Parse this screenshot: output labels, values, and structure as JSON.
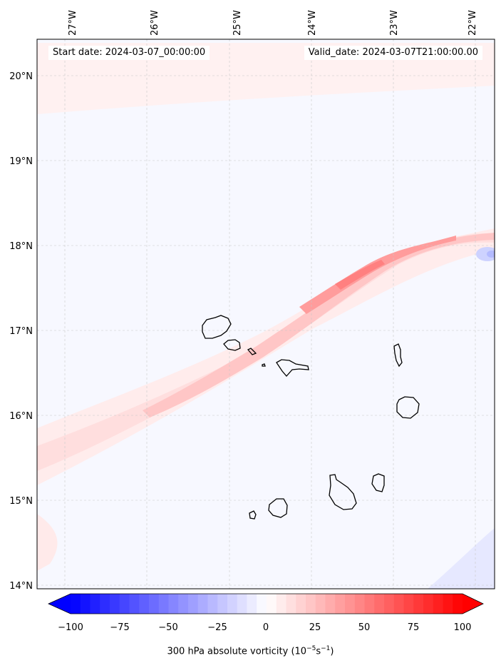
{
  "header": {
    "start_date": "Start date: 2024-03-07_00:00:00",
    "valid_date": "Valid_date: 2024-03-07T21:00:00.00"
  },
  "axes": {
    "lon_labels": [
      "27°W",
      "26°W",
      "25°W",
      "24°W",
      "23°W",
      "22°W"
    ],
    "lat_labels": [
      "20°N",
      "19°N",
      "18°N",
      "17°N",
      "16°N",
      "15°N",
      "14°N"
    ]
  },
  "colorbar": {
    "tick_labels": [
      "−100",
      "−75",
      "−50",
      "−25",
      "0",
      "25",
      "50",
      "75",
      "100"
    ],
    "label_prefix": "300 hPa absolute vorticity (10",
    "label_exp1": "−5",
    "label_mid": "s",
    "label_exp2": "−1",
    "label_suffix": ")",
    "min_color": "#0000ff",
    "max_color": "#ff0000"
  },
  "colors": {
    "background": "#f7f8ff",
    "positive_tint": "#ffe0e0",
    "negative_tint": "#e6e8ff",
    "coastline": "#000000"
  }
}
